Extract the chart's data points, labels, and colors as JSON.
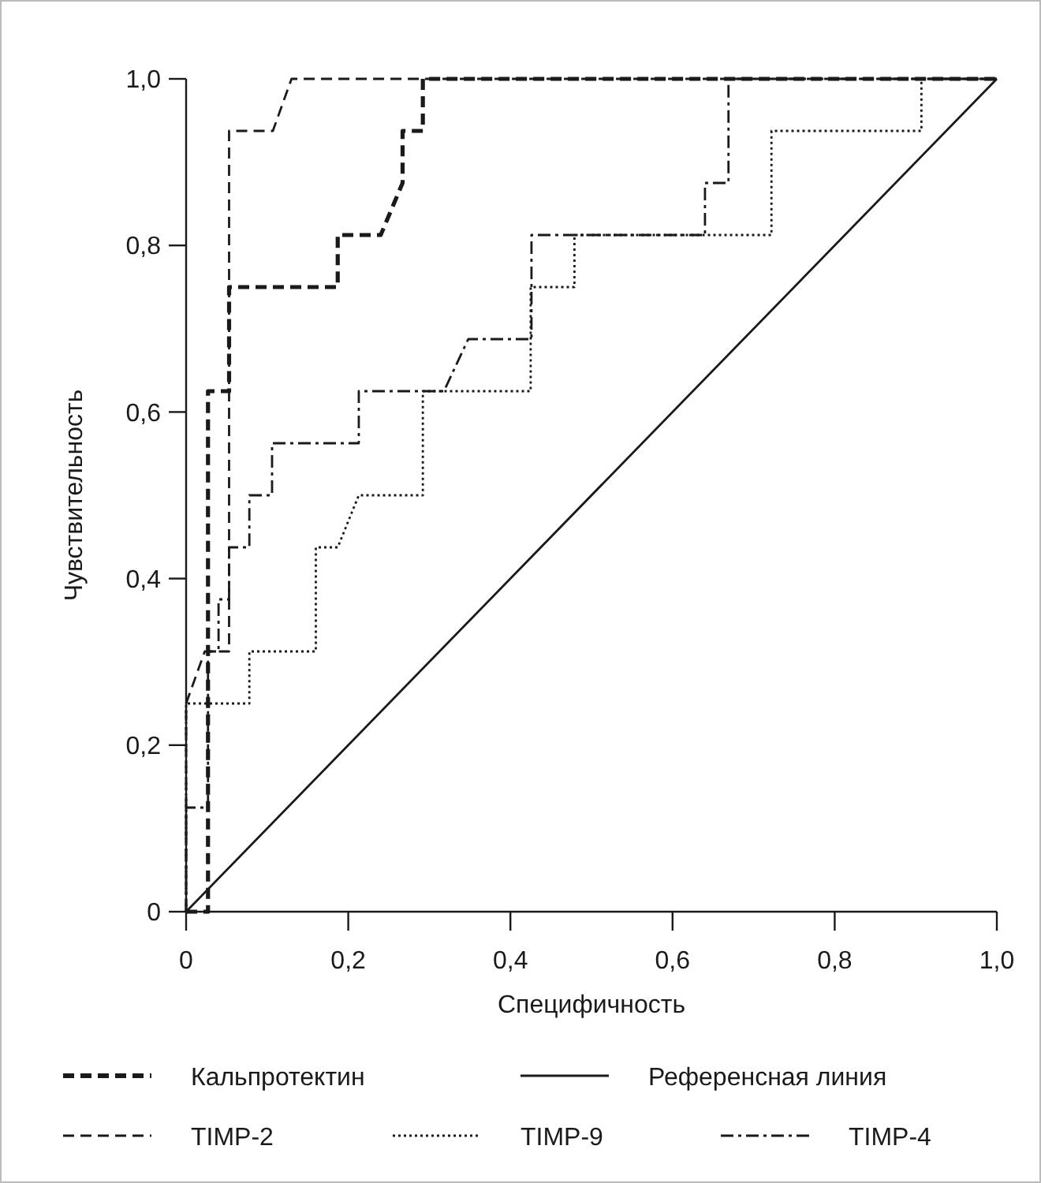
{
  "chart_data": {
    "type": "line",
    "xlabel": "Специфичность",
    "ylabel": "Чувствительность",
    "xlim": [
      0,
      1
    ],
    "ylim": [
      0,
      1
    ],
    "xticks": [
      0,
      {
        "value": 0.2,
        "label": "0,2"
      },
      {
        "value": 0.4,
        "label": "0,4"
      },
      {
        "value": 0.6,
        "label": "0,6"
      },
      {
        "value": 0.8,
        "label": "0,8"
      },
      {
        "value": 1,
        "label": "1,0"
      }
    ],
    "yticks": [
      0,
      {
        "value": 0.2,
        "label": "0,2"
      },
      {
        "value": 0.4,
        "label": "0,4"
      },
      {
        "value": 0.6,
        "label": "0,6"
      },
      {
        "value": 0.8,
        "label": "0,8"
      },
      {
        "value": 1,
        "label": "1,0"
      }
    ],
    "legend": "bottom",
    "grid": false,
    "marker": "none",
    "series": [
      {
        "name": "Кальпротектин",
        "color": "#1a1a1a",
        "line_style": "dashed",
        "x": [
          0,
          0.027,
          0.027,
          0.053,
          0.053,
          0.187,
          0.187,
          0.24,
          0.267,
          0.267,
          0.292,
          0.292,
          1
        ],
        "values": [
          0,
          0,
          0.625,
          0.625,
          0.75,
          0.75,
          0.8125,
          0.8125,
          0.875,
          0.9375,
          0.9375,
          1,
          1
        ]
      },
      {
        "name": "Референсная линия",
        "color": "#1a1a1a",
        "line_style": "solid",
        "x": [
          0,
          1
        ],
        "values": [
          0,
          1
        ]
      },
      {
        "name": "TIMP-2",
        "color": "#1a1a1a",
        "line_style": "dashed",
        "x": [
          0,
          0,
          0.023,
          0.053,
          0.053,
          0.107,
          0.13,
          1
        ],
        "values": [
          0,
          0.25,
          0.3125,
          0.3125,
          0.9375,
          0.9375,
          1,
          1
        ]
      },
      {
        "name": "TIMP-9",
        "color": "#1a1a1a",
        "line_style": "dotted",
        "x": [
          0,
          0,
          0.078,
          0.078,
          0.16,
          0.16,
          0.187,
          0.213,
          0.292,
          0.292,
          0.425,
          0.425,
          0.479,
          0.479,
          0.722,
          0.722,
          0.907,
          0.907,
          1
        ],
        "values": [
          0,
          0.25,
          0.25,
          0.3125,
          0.3125,
          0.4375,
          0.4375,
          0.5,
          0.5,
          0.625,
          0.625,
          0.75,
          0.75,
          0.8125,
          0.8125,
          0.9375,
          0.9375,
          1,
          1
        ]
      },
      {
        "name": "TIMP-4",
        "color": "#1a1a1a",
        "line_style": "dashdot",
        "x": [
          0,
          0,
          0.027,
          0.027,
          0.04,
          0.04,
          0.053,
          0.053,
          0.078,
          0.078,
          0.106,
          0.106,
          0.213,
          0.213,
          0.318,
          0.348,
          0.426,
          0.426,
          0.64,
          0.64,
          0.669,
          0.669,
          1
        ],
        "values": [
          0,
          0.125,
          0.125,
          0.3125,
          0.3125,
          0.375,
          0.375,
          0.4375,
          0.4375,
          0.5,
          0.5,
          0.5625,
          0.5625,
          0.625,
          0.625,
          0.6875,
          0.6875,
          0.8125,
          0.8125,
          0.875,
          0.875,
          1,
          1
        ]
      }
    ]
  }
}
